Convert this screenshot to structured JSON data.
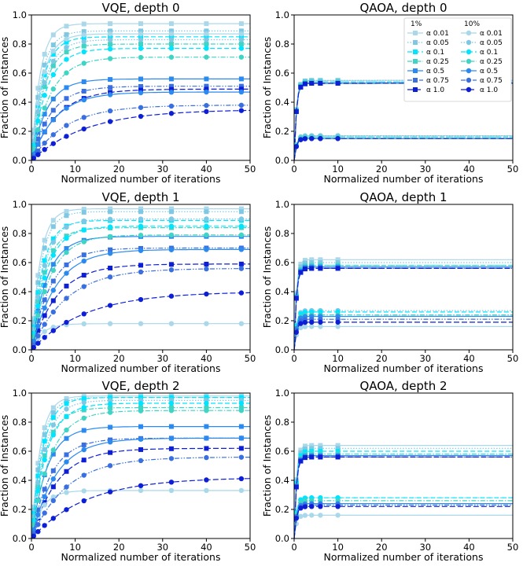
{
  "figure": {
    "xlabel": "Normalized number of iterations",
    "ylabel": "Fraction of Instances",
    "xlim": [
      0,
      50
    ],
    "ylim": [
      0,
      1.0
    ],
    "xticks": [
      "0",
      "10",
      "20",
      "30",
      "40",
      "50"
    ],
    "yticks": [
      "0.0",
      "0.2",
      "0.4",
      "0.6",
      "0.8",
      "1.0"
    ]
  },
  "legend": {
    "header_1pct": "1%",
    "header_10pct": "10%",
    "alphas": [
      "α 0.01",
      "α 0.05",
      "α 0.1",
      "α 0.25",
      "α 0.5",
      "α 0.75",
      "α 1.0"
    ],
    "colors": [
      "#a8d8ea",
      "#7ec8e3",
      "#00e5ff",
      "#3fd4c4",
      "#2a8af0",
      "#3a6fe0",
      "#0d1fd6"
    ]
  },
  "chart_data": [
    {
      "type": "line",
      "title": "VQE, depth 0",
      "xlabel": "Normalized number of iterations",
      "ylabel": "Fraction of Instances",
      "series_1pct_square_markers": [
        0.94,
        0.89,
        0.85,
        0.8,
        0.56,
        0.51,
        0.49
      ],
      "series_10pct_circle_markers": [
        0.87,
        0.83,
        0.77,
        0.71,
        0.47,
        0.38,
        0.35
      ]
    },
    {
      "type": "line",
      "title": "QAOA, depth 0",
      "xlabel": "Normalized number of iterations",
      "ylabel": "Fraction of Instances",
      "series_1pct_square_markers": [
        0.55,
        0.55,
        0.54,
        0.54,
        0.53,
        0.53,
        0.53
      ],
      "series_10pct_circle_markers": [
        0.17,
        0.17,
        0.16,
        0.16,
        0.15,
        0.15,
        0.15
      ]
    },
    {
      "type": "line",
      "title": "VQE, depth 1",
      "xlabel": "Normalized number of iterations",
      "ylabel": "Fraction of Instances",
      "series_1pct_square_markers": [
        0.97,
        0.95,
        0.89,
        0.84,
        0.78,
        0.7,
        0.59
      ],
      "series_10pct_circle_markers": [
        0.18,
        0.9,
        0.85,
        0.79,
        0.69,
        0.56,
        0.4
      ]
    },
    {
      "type": "line",
      "title": "QAOA, depth 1",
      "xlabel": "Normalized number of iterations",
      "ylabel": "Fraction of Instances",
      "series_1pct_square_markers": [
        0.62,
        0.6,
        0.58,
        0.58,
        0.57,
        0.56,
        0.56
      ],
      "series_10pct_circle_markers": [
        0.16,
        0.27,
        0.26,
        0.24,
        0.23,
        0.21,
        0.19
      ]
    },
    {
      "type": "line",
      "title": "VQE, depth 2",
      "xlabel": "Normalized number of iterations",
      "ylabel": "Fraction of Instances",
      "series_1pct_square_markers": [
        0.98,
        0.97,
        0.97,
        0.9,
        0.77,
        0.69,
        0.62
      ],
      "series_10pct_circle_markers": [
        0.33,
        0.95,
        0.93,
        0.88,
        0.69,
        0.56,
        0.42
      ]
    },
    {
      "type": "line",
      "title": "QAOA, depth 2",
      "xlabel": "Normalized number of iterations",
      "ylabel": "Fraction of Instances",
      "series_1pct_square_markers": [
        0.64,
        0.62,
        0.6,
        0.58,
        0.57,
        0.56,
        0.56
      ],
      "series_10pct_circle_markers": [
        0.16,
        0.28,
        0.28,
        0.26,
        0.24,
        0.23,
        0.22
      ]
    }
  ]
}
